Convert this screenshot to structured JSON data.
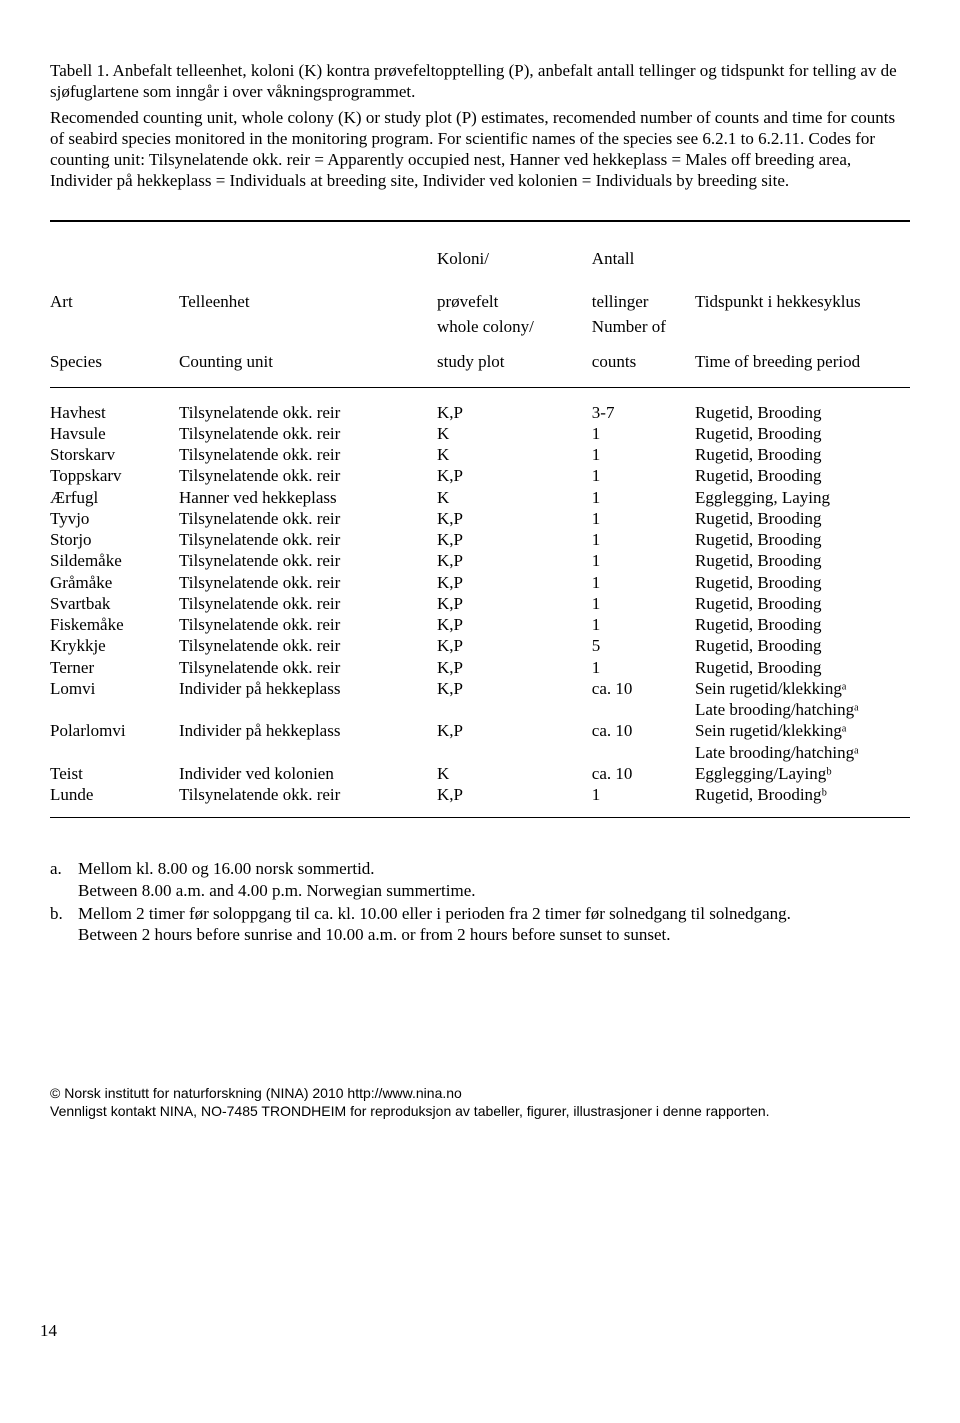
{
  "caption": {
    "para1": "Tabell 1. Anbefalt telleenhet, koloni (K) kontra prøvefeltopptelling (P), anbefalt antall tellinger og tidspunkt for telling av de sjøfuglartene som inngår i over våkningsprogrammet.",
    "para2": "Recomended counting unit, whole colony (K) or study plot (P) estimates, recomended number of counts and time for counts of seabird species monitored in the monitoring program. For scientific names of the species see 6.2.1 to 6.2.11. Codes for counting unit: Tilsynelatende okk. reir = Apparently occupied nest, Hanner ved hekkeplass = Males off breeding area, Individer på hekkeplass = Individuals at breeding site, Individer ved kolonien = Individuals by breeding site."
  },
  "header": {
    "art": "Art",
    "telleenhet": "Telleenhet",
    "koloni_line1": "Koloni/",
    "koloni_line2": "prøvefelt",
    "antall_line1": "Antall",
    "antall_line2": "tellinger",
    "tidspunkt": "Tidspunkt i hekkesyklus",
    "species": "Species",
    "counting_unit": "Counting unit",
    "whole_line1": "whole colony/",
    "whole_line2": "study plot",
    "number_line1": "Number of",
    "number_line2": "counts",
    "time_breeding": "Time of breeding period"
  },
  "rows": [
    {
      "art": "Havhest",
      "unit": "Tilsynelatende okk. reir",
      "kp": "K,P",
      "count": "3-7",
      "time": "Rugetid, Brooding"
    },
    {
      "art": "Havsule",
      "unit": "Tilsynelatende okk. reir",
      "kp": "K",
      "count": "1",
      "time": "Rugetid, Brooding"
    },
    {
      "art": "Storskarv",
      "unit": "Tilsynelatende okk. reir",
      "kp": "K",
      "count": "1",
      "time": "Rugetid, Brooding"
    },
    {
      "art": "Toppskarv",
      "unit": "Tilsynelatende okk. reir",
      "kp": "K,P",
      "count": "1",
      "time": "Rugetid, Brooding"
    },
    {
      "art": "Ærfugl",
      "unit": "Hanner ved hekkeplass",
      "kp": "K",
      "count": "1",
      "time": "Egglegging, Laying"
    },
    {
      "art": "Tyvjo",
      "unit": "Tilsynelatende okk. reir",
      "kp": "K,P",
      "count": "1",
      "time": "Rugetid, Brooding"
    },
    {
      "art": "Storjo",
      "unit": "Tilsynelatende okk. reir",
      "kp": "K,P",
      "count": "1",
      "time": "Rugetid, Brooding"
    },
    {
      "art": "Sildemåke",
      "unit": "Tilsynelatende okk. reir",
      "kp": "K,P",
      "count": "1",
      "time": "Rugetid, Brooding"
    },
    {
      "art": "Gråmåke",
      "unit": "Tilsynelatende okk. reir",
      "kp": "K,P",
      "count": "1",
      "time": "Rugetid, Brooding"
    },
    {
      "art": "Svartbak",
      "unit": "Tilsynelatende okk. reir",
      "kp": "K,P",
      "count": "1",
      "time": "Rugetid, Brooding"
    },
    {
      "art": "Fiskemåke",
      "unit": "Tilsynelatende okk. reir",
      "kp": "K,P",
      "count": "1",
      "time": "Rugetid, Brooding"
    },
    {
      "art": "Krykkje",
      "unit": "Tilsynelatende okk. reir",
      "kp": "K,P",
      "count": "5",
      "time": "Rugetid, Brooding"
    },
    {
      "art": "Terner",
      "unit": "Tilsynelatende okk. reir",
      "kp": "K,P",
      "count": "1",
      "time": "Rugetid, Brooding"
    },
    {
      "art": "Lomvi",
      "unit": "Individer på hekkeplass",
      "kp": "K,P",
      "count": "ca. 10",
      "time": "Sein rugetid/klekkingᵃ"
    },
    {
      "art": "",
      "unit": "",
      "kp": "",
      "count": "",
      "time": "Late brooding/hatchingᵃ"
    },
    {
      "art": "Polarlomvi",
      "unit": "Individer på hekkeplass",
      "kp": "K,P",
      "count": "ca. 10",
      "time": "Sein rugetid/klekkingᵃ"
    },
    {
      "art": "",
      "unit": "",
      "kp": "",
      "count": "",
      "time": "Late brooding/hatchingᵃ"
    },
    {
      "art": "Teist",
      "unit": "Individer ved kolonien",
      "kp": "K",
      "count": "ca. 10",
      "time": "Egglegging/Layingᵇ"
    },
    {
      "art": "Lunde",
      "unit": "Tilsynelatende okk. reir",
      "kp": "K,P",
      "count": "1",
      "time": "Rugetid, Broodingᵇ"
    }
  ],
  "footnotes": {
    "a_label": "a.",
    "a_line1": "Mellom kl. 8.00 og 16.00 norsk sommertid.",
    "a_line2": "Between 8.00 a.m. and 4.00 p.m. Norwegian summertime.",
    "b_label": "b.",
    "b_line1": "Mellom 2 timer før soloppgang til ca. kl. 10.00 eller i perioden fra 2 timer før solnedgang til solnedgang.",
    "b_line2": "Between 2 hours before sunrise and 10.00 a.m. or from 2 hours before sunset to sunset."
  },
  "page_number": "14",
  "footer": {
    "line1": "© Norsk institutt for naturforskning (NINA) 2010 http://www.nina.no",
    "line2": "Vennligst kontakt NINA, NO-7485 TRONDHEIM for reproduksjon av tabeller, figurer, illustrasjoner i denne rapporten."
  }
}
